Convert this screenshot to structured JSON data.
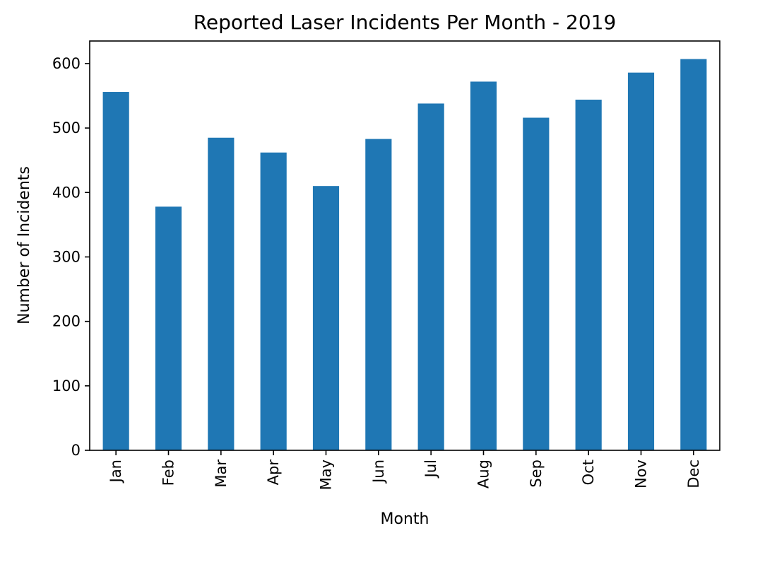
{
  "chart_data": {
    "type": "bar",
    "title": "Reported Laser Incidents Per Month - 2019",
    "xlabel": "Month",
    "ylabel": "Number of Incidents",
    "categories": [
      "Jan",
      "Feb",
      "Mar",
      "Apr",
      "May",
      "Jun",
      "Jul",
      "Aug",
      "Sep",
      "Oct",
      "Nov",
      "Dec"
    ],
    "values": [
      556,
      378,
      485,
      462,
      410,
      483,
      538,
      572,
      516,
      544,
      586,
      607
    ],
    "ylim": [
      0,
      635
    ],
    "yticks": [
      0,
      100,
      200,
      300,
      400,
      500,
      600
    ],
    "xtick_rotation": "vertical",
    "grid": false,
    "legend": "none",
    "bar_color": "#1f77b4"
  }
}
